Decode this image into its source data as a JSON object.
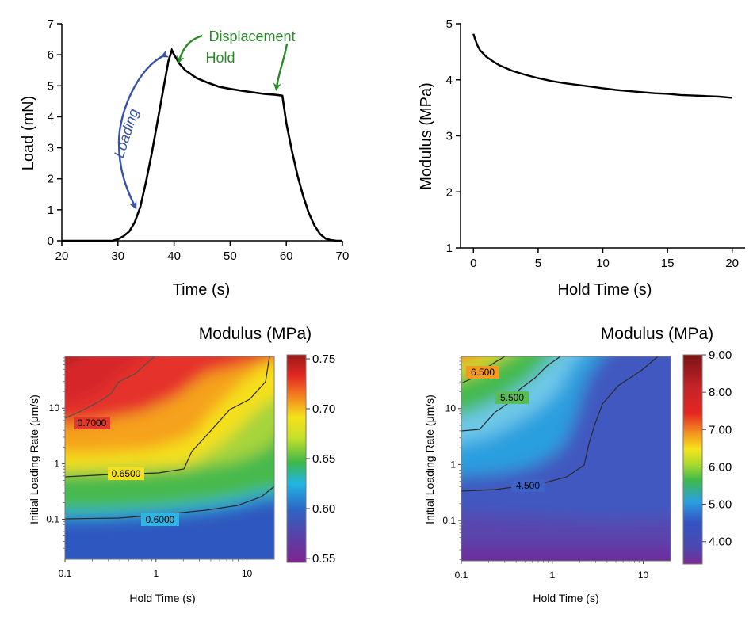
{
  "chart_data": [
    {
      "type": "line",
      "xlabel": "Time (s)",
      "ylabel": "Load (mN)",
      "xlim": [
        20,
        70
      ],
      "ylim": [
        0,
        7
      ],
      "xticks": [
        "20",
        "30",
        "40",
        "50",
        "60",
        "70"
      ],
      "yticks": [
        "0",
        "1",
        "2",
        "3",
        "4",
        "5",
        "6",
        "7"
      ],
      "series": [
        {
          "x": [
            20,
            29,
            30,
            31,
            32,
            33,
            34,
            35,
            36,
            37,
            38,
            39,
            39.6,
            40,
            41,
            42,
            44,
            46,
            48,
            50,
            52,
            54,
            56,
            58,
            59,
            59.3,
            60,
            61,
            62,
            63,
            64,
            65,
            66,
            67,
            68,
            69,
            70
          ],
          "y": [
            0,
            0,
            0.05,
            0.15,
            0.3,
            0.6,
            1.1,
            1.9,
            2.8,
            3.8,
            4.8,
            5.8,
            6.15,
            6.0,
            5.7,
            5.5,
            5.25,
            5.1,
            4.97,
            4.9,
            4.84,
            4.79,
            4.74,
            4.71,
            4.69,
            4.68,
            3.8,
            2.9,
            2.1,
            1.45,
            0.9,
            0.5,
            0.22,
            0.07,
            0.02,
            0,
            0
          ]
        }
      ],
      "annotations": {
        "loading": "Loading",
        "displacement_hold_line1": "Displacement",
        "displacement_hold_line2": "Hold"
      },
      "colors": {
        "loading_annotation": "#3752a6",
        "hold_annotation": "#2a8a2a"
      }
    },
    {
      "type": "line",
      "xlabel": "Hold Time (s)",
      "ylabel": "Modulus (MPa)",
      "xlim": [
        -1,
        21
      ],
      "ylim": [
        1,
        5
      ],
      "xticks": [
        "0",
        "5",
        "10",
        "15",
        "20"
      ],
      "yticks": [
        "1",
        "2",
        "3",
        "4",
        "5"
      ],
      "series": [
        {
          "x": [
            0,
            0.1,
            0.3,
            0.5,
            1,
            1.5,
            2,
            3,
            4,
            5,
            6,
            7,
            8,
            9,
            10,
            11,
            12,
            13,
            14,
            15,
            16,
            17,
            18,
            19,
            20
          ],
          "y": [
            4.82,
            4.74,
            4.62,
            4.53,
            4.41,
            4.33,
            4.26,
            4.16,
            4.09,
            4.03,
            3.98,
            3.94,
            3.91,
            3.88,
            3.85,
            3.82,
            3.8,
            3.78,
            3.76,
            3.75,
            3.73,
            3.72,
            3.71,
            3.7,
            3.68
          ]
        }
      ]
    },
    {
      "type": "heatmap",
      "title": "Modulus (MPa)",
      "xlabel": "Hold Time (s)",
      "ylabel": "Initial Loading Rate (μm/s)",
      "xscale": "log",
      "yscale": "log",
      "xticks": [
        "0.1",
        "1",
        "10"
      ],
      "yticks": [
        "0.1",
        "1",
        "10"
      ],
      "colorbar_ticks": [
        "0.75",
        "0.70",
        "0.65",
        "0.60",
        "0.55"
      ],
      "colorbar_range": [
        0.55,
        0.75
      ],
      "contour_labels": [
        "0.7000",
        "0.6500",
        "0.6000"
      ]
    },
    {
      "type": "heatmap",
      "title": "Modulus (MPa)",
      "xlabel": "Hold Time (s)",
      "ylabel": "Initial Loading Rate (μm/s)",
      "xscale": "log",
      "yscale": "log",
      "xticks": [
        "0.1",
        "1",
        "10"
      ],
      "yticks": [
        "0.1",
        "1",
        "10"
      ],
      "colorbar_ticks": [
        "9.00",
        "8.00",
        "7.00",
        "6.00",
        "5.00",
        "4.00"
      ],
      "colorbar_range": [
        3.4,
        9.0
      ],
      "contour_labels": [
        "6.500",
        "5.500",
        "4.500"
      ]
    }
  ]
}
